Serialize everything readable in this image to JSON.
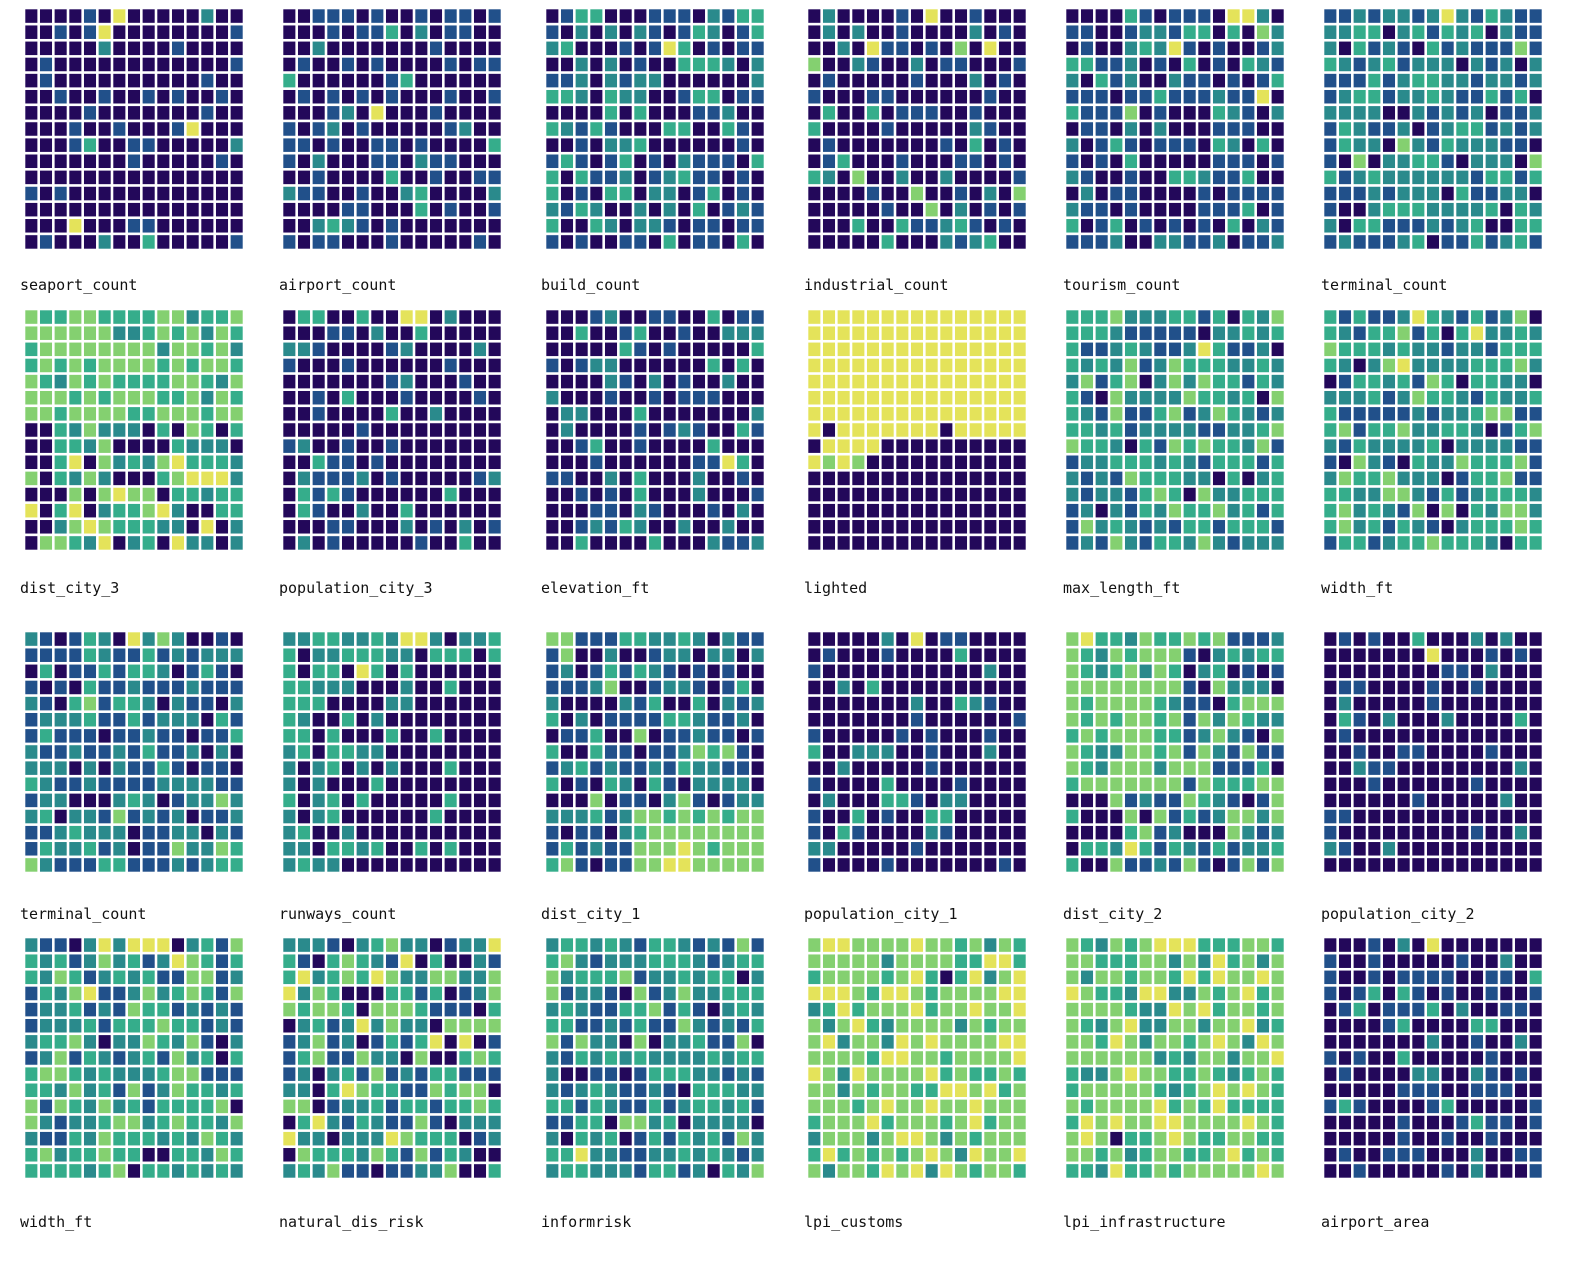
{
  "palette": {
    "levels": [
      "#23085a",
      "#21508a",
      "#2a8a8c",
      "#35ad8b",
      "#84d070",
      "#e4e35a"
    ],
    "tile_border": "#ffffff",
    "background": "#ffffff"
  },
  "chart_data": {
    "type": "heatmap",
    "rows": 15,
    "cols": 15,
    "value_scale": "0-5 (dark purple = 0 ... yellow = 5)",
    "grid": false,
    "panels": [
      {
        "label": "seaport_count",
        "pattern": "sparse",
        "p": [
          0.82,
          0.14,
          0.02,
          0.01,
          0.0,
          0.01
        ],
        "hot": [
          [
            0,
            6
          ]
        ]
      },
      {
        "label": "airport_count",
        "pattern": "sparse",
        "p": [
          0.62,
          0.28,
          0.06,
          0.04,
          0.0,
          0.0
        ],
        "hot": [
          [
            6,
            6
          ]
        ]
      },
      {
        "label": "build_count",
        "pattern": "sparse",
        "p": [
          0.45,
          0.25,
          0.12,
          0.18,
          0.0,
          0.0
        ],
        "hot": [
          [
            2,
            8
          ]
        ]
      },
      {
        "label": "industrial_count",
        "pattern": "sparse",
        "p": [
          0.62,
          0.22,
          0.08,
          0.06,
          0.02,
          0.0
        ],
        "hot": [
          [
            0,
            8
          ],
          [
            2,
            4
          ],
          [
            2,
            12
          ]
        ]
      },
      {
        "label": "tourism_count",
        "pattern": "sparse",
        "p": [
          0.45,
          0.3,
          0.12,
          0.11,
          0.02,
          0.0
        ],
        "hot": [
          [
            0,
            11
          ],
          [
            0,
            12
          ],
          [
            2,
            7
          ],
          [
            5,
            13
          ]
        ]
      },
      {
        "label": "terminal_count",
        "pattern": "sparse",
        "p": [
          0.1,
          0.34,
          0.36,
          0.16,
          0.04,
          0.0
        ],
        "hot": [
          [
            0,
            8
          ]
        ]
      },
      {
        "label": "dist_city_3",
        "pattern": "gradient_top_light",
        "p": [
          0.12,
          0.15,
          0.25,
          0.23,
          0.2,
          0.05
        ],
        "hot": [
          [
            9,
            10
          ],
          [
            10,
            12
          ]
        ]
      },
      {
        "label": "population_city_3",
        "pattern": "sparse",
        "p": [
          0.72,
          0.16,
          0.08,
          0.04,
          0.0,
          0.0
        ],
        "hot": [
          [
            0,
            8
          ],
          [
            0,
            9
          ]
        ]
      },
      {
        "label": "elevation_ft",
        "pattern": "sparse",
        "p": [
          0.58,
          0.22,
          0.12,
          0.08,
          0.0,
          0.0
        ],
        "hot": [
          [
            9,
            12
          ]
        ]
      },
      {
        "label": "lighted",
        "pattern": "top_yellow_bottom_dark",
        "p": [
          0.45,
          0.0,
          0.0,
          0.0,
          0.0,
          0.55
        ],
        "hot": []
      },
      {
        "label": "max_length_ft",
        "pattern": "sparse",
        "p": [
          0.04,
          0.18,
          0.3,
          0.33,
          0.15,
          0.0
        ],
        "hot": [
          [
            2,
            9
          ]
        ]
      },
      {
        "label": "width_ft",
        "pattern": "sparse",
        "p": [
          0.04,
          0.2,
          0.28,
          0.3,
          0.18,
          0.0
        ],
        "hot": [
          [
            0,
            6
          ],
          [
            1,
            10
          ],
          [
            3,
            5
          ]
        ]
      },
      {
        "label": "terminal_count",
        "pattern": "sparse",
        "p": [
          0.14,
          0.42,
          0.3,
          0.12,
          0.02,
          0.0
        ],
        "hot": [
          [
            0,
            7
          ]
        ]
      },
      {
        "label": "runways_count",
        "pattern": "top_mixed_bottom_dark",
        "p": [
          0.62,
          0.08,
          0.14,
          0.14,
          0.02,
          0.0
        ],
        "hot": [
          [
            0,
            8
          ],
          [
            0,
            9
          ],
          [
            2,
            5
          ]
        ]
      },
      {
        "label": "dist_city_1",
        "pattern": "bottom_light",
        "p": [
          0.26,
          0.34,
          0.22,
          0.14,
          0.04,
          0.0
        ],
        "hot": [
          [
            13,
            9
          ],
          [
            14,
            8
          ],
          [
            14,
            9
          ]
        ]
      },
      {
        "label": "population_city_1",
        "pattern": "sparse",
        "p": [
          0.76,
          0.12,
          0.07,
          0.05,
          0.0,
          0.0
        ],
        "hot": [
          [
            0,
            7
          ]
        ]
      },
      {
        "label": "dist_city_2",
        "pattern": "top_light_bottom_dark",
        "p": [
          0.16,
          0.26,
          0.24,
          0.16,
          0.18,
          0.0
        ],
        "hot": [
          [
            0,
            1
          ],
          [
            13,
            4
          ]
        ]
      },
      {
        "label": "population_city_2",
        "pattern": "sparse",
        "p": [
          0.82,
          0.12,
          0.04,
          0.02,
          0.0,
          0.0
        ],
        "hot": [
          [
            1,
            7
          ]
        ]
      },
      {
        "label": "width_ft",
        "pattern": "sparse",
        "p": [
          0.04,
          0.2,
          0.28,
          0.3,
          0.18,
          0.0
        ],
        "hot": [
          [
            0,
            5
          ],
          [
            0,
            7
          ],
          [
            0,
            8
          ],
          [
            0,
            9
          ],
          [
            1,
            10
          ],
          [
            3,
            4
          ]
        ]
      },
      {
        "label": "natural_dis_risk",
        "pattern": "sparse",
        "p": [
          0.12,
          0.2,
          0.24,
          0.22,
          0.18,
          0.04
        ],
        "hot": [
          [
            2,
            1
          ],
          [
            3,
            0
          ],
          [
            5,
            5
          ],
          [
            6,
            10
          ],
          [
            6,
            12
          ],
          [
            11,
            2
          ],
          [
            12,
            7
          ]
        ]
      },
      {
        "label": "informrisk",
        "pattern": "sparse",
        "p": [
          0.06,
          0.2,
          0.34,
          0.34,
          0.06,
          0.0
        ],
        "hot": [
          [
            13,
            2
          ]
        ]
      },
      {
        "label": "lpi_customs",
        "pattern": "sparse",
        "p": [
          0.01,
          0.0,
          0.08,
          0.2,
          0.5,
          0.21
        ],
        "hot": []
      },
      {
        "label": "lpi_infrastructure",
        "pattern": "sparse",
        "p": [
          0.01,
          0.0,
          0.1,
          0.26,
          0.48,
          0.15
        ],
        "hot": []
      },
      {
        "label": "airport_area",
        "pattern": "sparse",
        "p": [
          0.62,
          0.28,
          0.06,
          0.04,
          0.0,
          0.0
        ],
        "hot": [
          [
            0,
            7
          ]
        ]
      }
    ]
  }
}
